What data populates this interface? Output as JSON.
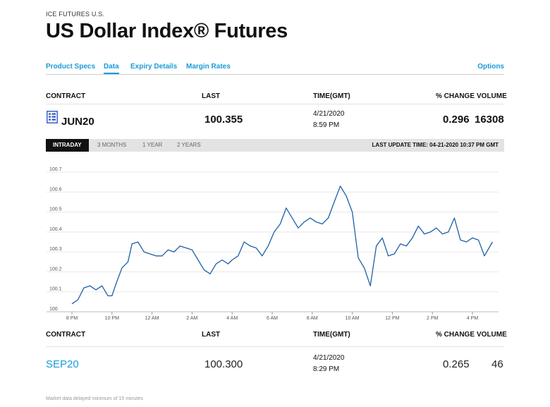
{
  "header": {
    "eyebrow": "ICE FUTURES U.S.",
    "title": "US Dollar Index® Futures"
  },
  "tabs": [
    {
      "label": "Product Specs"
    },
    {
      "label": "Data"
    },
    {
      "label": "Expiry Details"
    },
    {
      "label": "Margin Rates"
    },
    {
      "label": "Options"
    }
  ],
  "columns": {
    "contract": "CONTRACT",
    "last": "LAST",
    "time": "TIME(GMT)",
    "change": "% CHANGE",
    "volume": "VOLUME"
  },
  "front_contract": {
    "symbol": "JUN20",
    "last": "100.355",
    "date": "4/21/2020",
    "time": "8:59 PM",
    "change": "0.296",
    "volume": "16308",
    "icon": "spreadsheet-icon"
  },
  "range": {
    "options": [
      "INTRADAY",
      "3 MONTHS",
      "1 YEAR",
      "2 YEARS"
    ],
    "selected": "INTRADAY",
    "last_update": "LAST UPDATE TIME: 04-21-2020 10:37 PM GMT"
  },
  "chart_data": {
    "type": "line",
    "x_ticks": [
      "8 PM",
      "10 PM",
      "12 AM",
      "2 AM",
      "4 AM",
      "6 AM",
      "8 AM",
      "10 AM",
      "12 PM",
      "2 PM",
      "4 PM"
    ],
    "y_ticks": [
      "100",
      "100.1",
      "100.2",
      "100.3",
      "100.4",
      "100.5",
      "100.6",
      "100.7"
    ],
    "ylim": [
      100,
      100.7
    ],
    "x_unit": "hours since 8 PM",
    "xlim": [
      0,
      21.5
    ],
    "grid": true,
    "line_color": "#1f5fa6",
    "series": [
      {
        "x": [
          0,
          0.3,
          0.6,
          0.9,
          1.2,
          1.5,
          1.8,
          2.0,
          2.2,
          2.5,
          2.8,
          3.0,
          3.3,
          3.6,
          3.9,
          4.2,
          4.5,
          4.8,
          5.1,
          5.4,
          5.7,
          6.0,
          6.3,
          6.6,
          6.9,
          7.2,
          7.5,
          7.8,
          8.0,
          8.3,
          8.6,
          8.9,
          9.2,
          9.5,
          9.8,
          10.1,
          10.4,
          10.7,
          11.0,
          11.3,
          11.6,
          11.9,
          12.2,
          12.5,
          12.8,
          13.1,
          13.4,
          13.7,
          14.0,
          14.3,
          14.6,
          14.9,
          15.2,
          15.5,
          15.8,
          16.1,
          16.4,
          16.7,
          17.0,
          17.3,
          17.6,
          17.9,
          18.2,
          18.5,
          18.8,
          19.1,
          19.4,
          19.7,
          20.0,
          20.3,
          20.6,
          21.0
        ],
        "y": [
          100.04,
          100.06,
          100.12,
          100.13,
          100.11,
          100.13,
          100.08,
          100.08,
          100.14,
          100.22,
          100.25,
          100.34,
          100.35,
          100.3,
          100.29,
          100.28,
          100.28,
          100.31,
          100.3,
          100.33,
          100.32,
          100.31,
          100.26,
          100.21,
          100.19,
          100.24,
          100.26,
          100.24,
          100.26,
          100.28,
          100.35,
          100.33,
          100.32,
          100.28,
          100.33,
          100.4,
          100.44,
          100.52,
          100.47,
          100.42,
          100.45,
          100.47,
          100.45,
          100.44,
          100.47,
          100.55,
          100.63,
          100.58,
          100.5,
          100.27,
          100.22,
          100.13,
          100.33,
          100.37,
          100.28,
          100.29,
          100.34,
          100.33,
          100.37,
          100.43,
          100.39,
          100.4,
          100.42,
          100.39,
          100.4,
          100.47,
          100.36,
          100.35,
          100.37,
          100.36,
          100.28,
          100.35
        ]
      }
    ]
  },
  "second_contract": {
    "symbol": "SEP20",
    "last": "100.300",
    "date": "4/21/2020",
    "time": "8:29 PM",
    "change": "0.265",
    "volume": "46"
  },
  "footer": {
    "note": "Market data delayed minimum of 15 minutes"
  }
}
